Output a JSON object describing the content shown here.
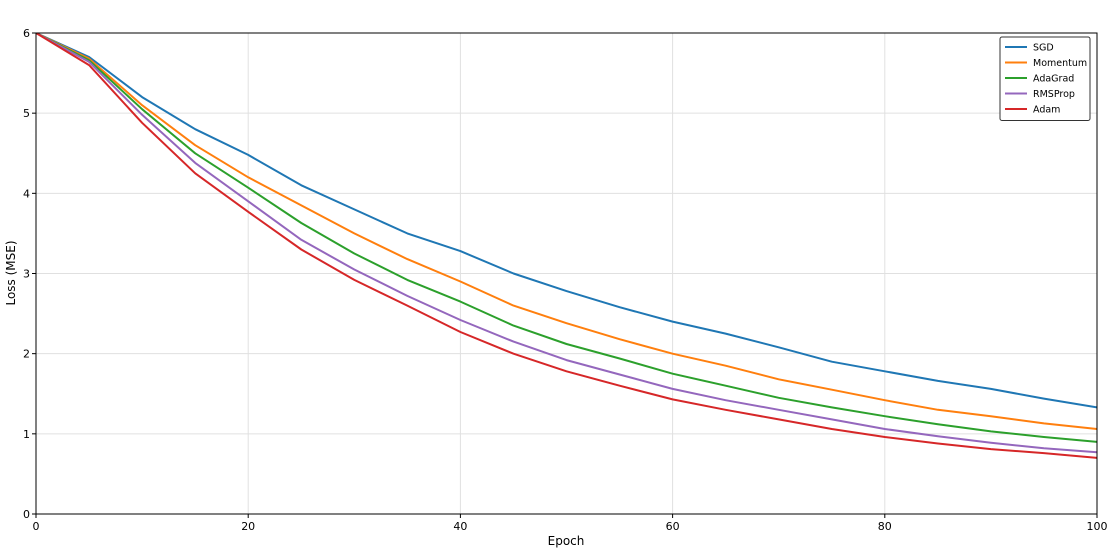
{
  "chart_data": {
    "type": "line",
    "xlabel": "Epoch",
    "ylabel": "Loss (MSE)",
    "xlim": [
      0,
      100
    ],
    "ylim": [
      0,
      6
    ],
    "xticks": [
      0,
      20,
      40,
      60,
      80,
      100
    ],
    "yticks": [
      0,
      1,
      2,
      3,
      4,
      5,
      6
    ],
    "grid": true,
    "legend_position": "top-right",
    "x": [
      0,
      5,
      10,
      15,
      20,
      25,
      30,
      35,
      40,
      45,
      50,
      55,
      60,
      65,
      70,
      75,
      80,
      85,
      90,
      95,
      100
    ],
    "series": [
      {
        "name": "SGD",
        "color": "#1f77b4",
        "values": [
          6.0,
          5.7,
          5.2,
          4.8,
          4.48,
          4.1,
          3.8,
          3.5,
          3.28,
          3.0,
          2.78,
          2.58,
          2.4,
          2.25,
          2.08,
          1.9,
          1.78,
          1.66,
          1.56,
          1.44,
          1.33
        ]
      },
      {
        "name": "Momentum",
        "color": "#ff7f0e",
        "values": [
          6.0,
          5.68,
          5.1,
          4.6,
          4.2,
          3.85,
          3.5,
          3.18,
          2.9,
          2.6,
          2.38,
          2.18,
          2.0,
          1.85,
          1.68,
          1.55,
          1.42,
          1.3,
          1.22,
          1.13,
          1.06
        ]
      },
      {
        "name": "AdaGrad",
        "color": "#2ca02c",
        "values": [
          6.0,
          5.66,
          5.05,
          4.5,
          4.07,
          3.63,
          3.25,
          2.92,
          2.65,
          2.35,
          2.12,
          1.94,
          1.75,
          1.6,
          1.45,
          1.33,
          1.22,
          1.12,
          1.03,
          0.96,
          0.9
        ]
      },
      {
        "name": "RMSProp",
        "color": "#9467bd",
        "values": [
          6.0,
          5.64,
          4.98,
          4.38,
          3.9,
          3.42,
          3.05,
          2.72,
          2.42,
          2.15,
          1.92,
          1.74,
          1.56,
          1.42,
          1.3,
          1.18,
          1.06,
          0.97,
          0.89,
          0.82,
          0.77
        ]
      },
      {
        "name": "Adam",
        "color": "#d62728",
        "values": [
          6.0,
          5.6,
          4.88,
          4.25,
          3.77,
          3.3,
          2.92,
          2.6,
          2.27,
          2.0,
          1.78,
          1.6,
          1.43,
          1.3,
          1.18,
          1.06,
          0.96,
          0.88,
          0.81,
          0.76,
          0.7
        ]
      }
    ]
  }
}
